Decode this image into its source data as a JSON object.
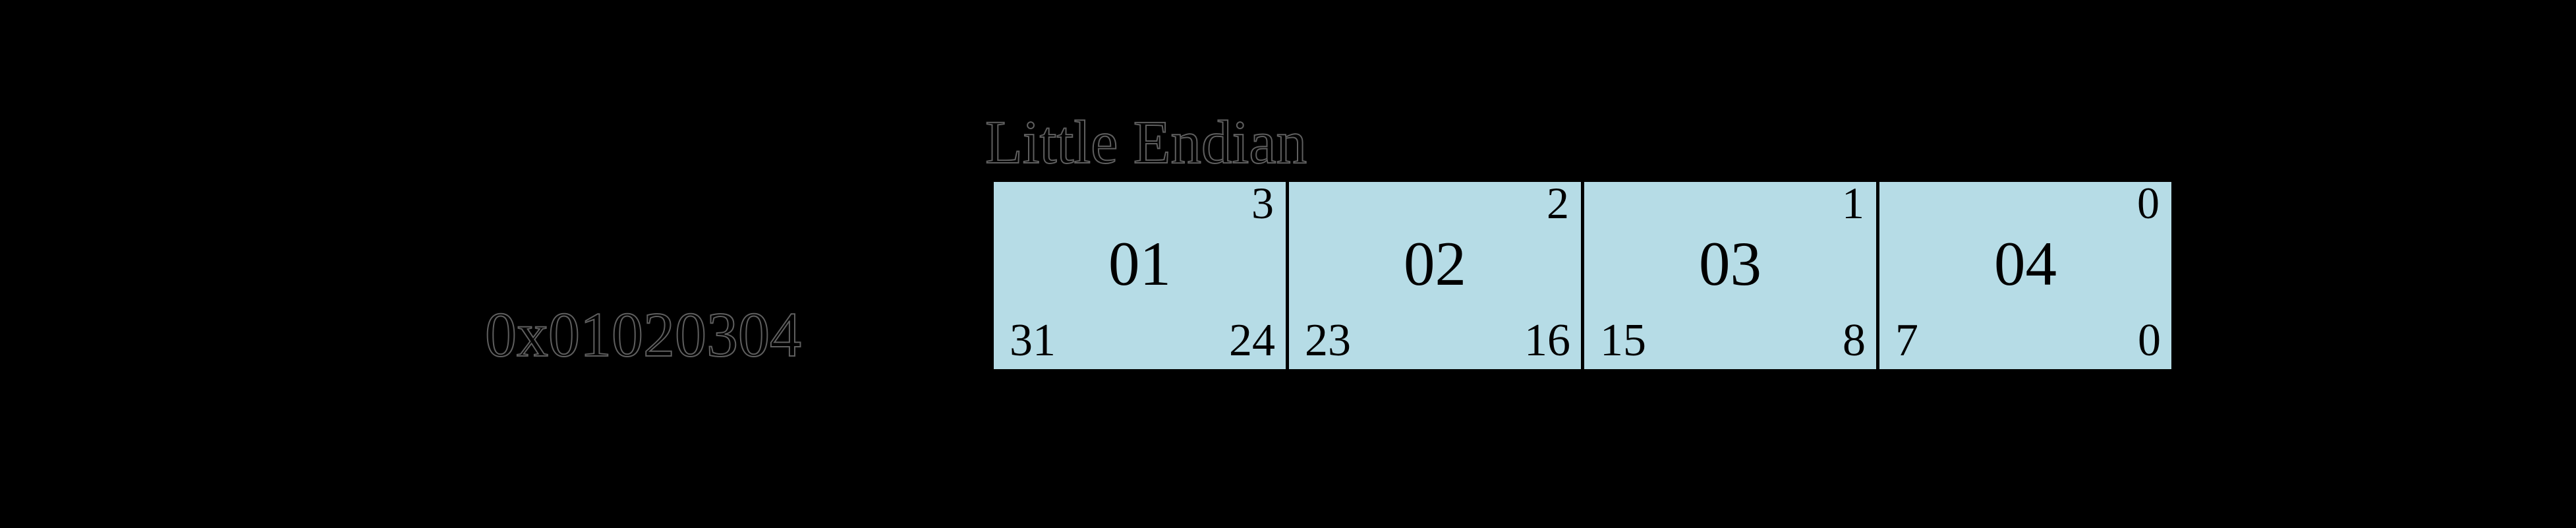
{
  "title": "Little Endian",
  "word_value_label": "0x01020304",
  "colors": {
    "background": "#000000",
    "cell_fill": "#b6dce6",
    "cell_border": "#000000",
    "cell_text": "#000000",
    "hidden_label_text": "#000000",
    "hidden_label_outline": "#5f5f5f"
  },
  "cells": [
    {
      "byte_offset": "3",
      "value": "01",
      "bit_msb": "31",
      "bit_lsb": "24"
    },
    {
      "byte_offset": "2",
      "value": "02",
      "bit_msb": "23",
      "bit_lsb": "16"
    },
    {
      "byte_offset": "1",
      "value": "03",
      "bit_msb": "15",
      "bit_lsb": "8"
    },
    {
      "byte_offset": "0",
      "value": "04",
      "bit_msb": "7",
      "bit_lsb": "0"
    }
  ]
}
